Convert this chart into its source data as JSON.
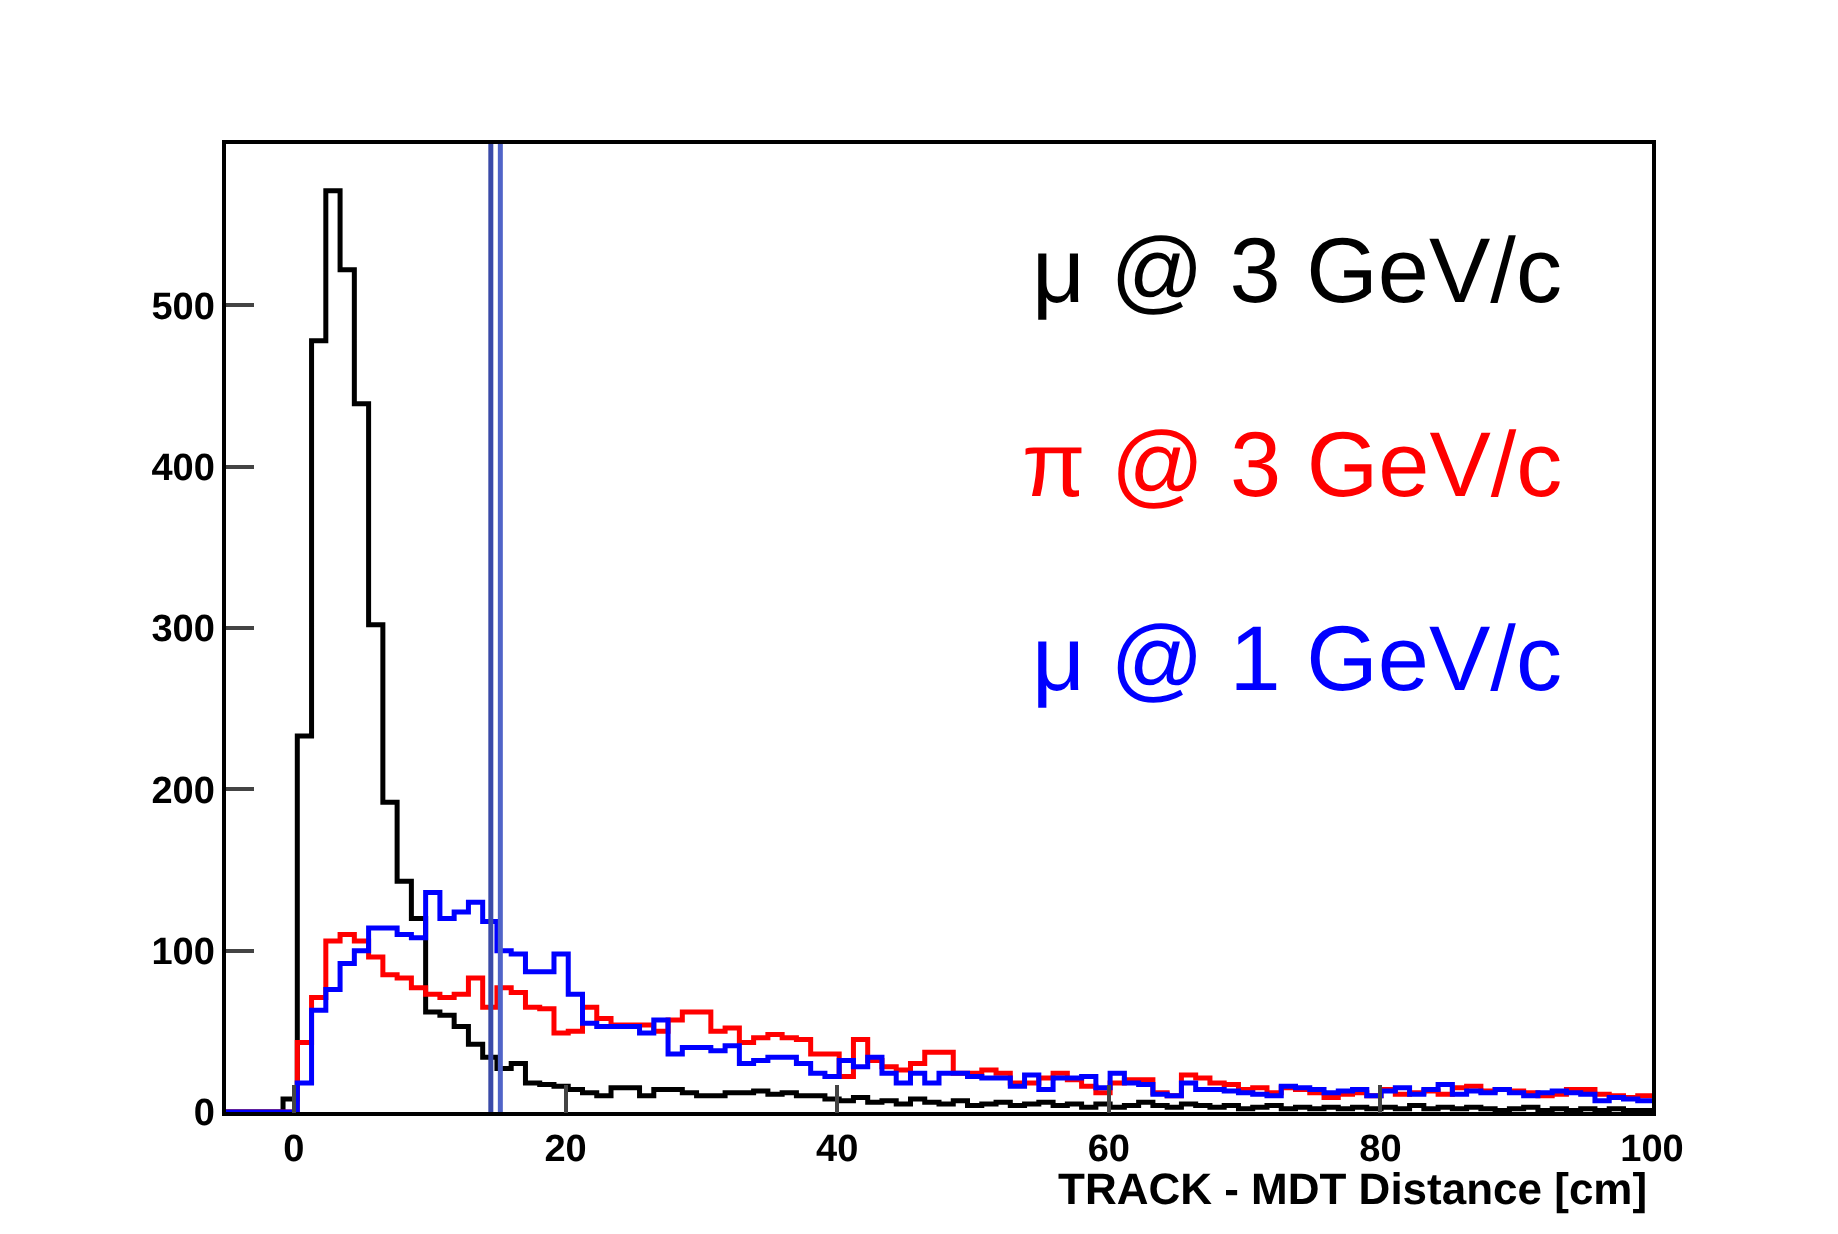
{
  "chart_data": {
    "type": "histogram",
    "xlabel": "TRACK - MDT Distance [cm]",
    "bins": [
      -5,
      -3.95,
      -2.9,
      -1.85,
      -0.8,
      0.25,
      1.3,
      2.35,
      3.4,
      4.45,
      5.5,
      6.55,
      7.6,
      8.65,
      9.7,
      10.75,
      11.8,
      12.85,
      13.9,
      14.95,
      16,
      17.05,
      18.1,
      19.15,
      20.2,
      21.25,
      22.3,
      23.35,
      24.4,
      25.45,
      26.5,
      27.55,
      28.6,
      29.65,
      30.7,
      31.75,
      32.8,
      33.85,
      34.9,
      35.95,
      37,
      38.05,
      39.1,
      40.15,
      41.2,
      42.25,
      43.3,
      44.35,
      45.4,
      46.45,
      47.5,
      48.55,
      49.6,
      50.65,
      51.7,
      52.75,
      53.8,
      54.85,
      55.9,
      56.95,
      58,
      59.05,
      60.1,
      61.15,
      62.2,
      63.25,
      64.3,
      65.35,
      66.4,
      67.45,
      68.5,
      69.55,
      70.6,
      71.65,
      72.7,
      73.75,
      74.8,
      75.85,
      76.9,
      77.95,
      79,
      80.05,
      81.1,
      82.15,
      83.2,
      84.25,
      85.3,
      86.35,
      87.4,
      88.45,
      89.5,
      90.55,
      91.6,
      92.65,
      93.7,
      94.75,
      95.8,
      96.85,
      97.9,
      98.95,
      100
    ],
    "series": [
      {
        "name": "μ @ 3 GeV/c",
        "color": "#000000",
        "values": [
          0,
          0,
          0,
          0,
          8,
          233,
          478,
          571,
          522,
          439,
          302,
          192,
          143,
          120,
          62,
          60,
          53,
          42,
          34,
          27,
          30,
          18,
          17,
          16,
          14,
          12,
          10,
          15,
          15,
          10,
          14,
          14,
          12,
          10,
          10,
          12,
          12,
          13,
          11,
          12,
          10,
          10,
          8,
          7,
          9,
          6,
          7,
          5,
          8,
          6,
          5,
          7,
          4,
          5,
          6,
          4,
          5,
          6,
          4,
          5,
          3,
          5,
          3,
          4,
          6,
          4,
          3,
          5,
          4,
          3,
          4,
          2,
          3,
          4,
          2,
          3,
          2,
          3,
          2,
          3,
          2,
          3,
          2,
          4,
          2,
          3,
          2,
          3,
          2,
          1,
          2,
          3,
          1,
          2,
          1,
          2,
          1,
          2,
          1,
          1
        ]
      },
      {
        "name": "π @ 3 GeV/c",
        "color": "#ff0000",
        "values": [
          0,
          0,
          0,
          0,
          0,
          43,
          71,
          106,
          110,
          106,
          96,
          85,
          83,
          77,
          73,
          71,
          73,
          83,
          65,
          77,
          74,
          65,
          64,
          49,
          50,
          65,
          58,
          54,
          54,
          54,
          50,
          57,
          62,
          62,
          50,
          52,
          43,
          46,
          48,
          46,
          45,
          36,
          36,
          22,
          45,
          32,
          28,
          26,
          30,
          37,
          37,
          24,
          24,
          26,
          24,
          18,
          18,
          21,
          24,
          20,
          16,
          12,
          18,
          20,
          20,
          12,
          10,
          23,
          21,
          18,
          17,
          14,
          15,
          12,
          15,
          14,
          12,
          9,
          11,
          12,
          10,
          14,
          11,
          12,
          13,
          11,
          15,
          16,
          13,
          14,
          13,
          12,
          10,
          11,
          14,
          14,
          11,
          10,
          9,
          10
        ]
      },
      {
        "name": "μ @ 1 GeV/c",
        "color": "#0000ff",
        "values": [
          0,
          0,
          0,
          0,
          0,
          18,
          63,
          76,
          92,
          100,
          114,
          114,
          110,
          108,
          136,
          120,
          124,
          130,
          118,
          100,
          98,
          87,
          87,
          98,
          73,
          55,
          53,
          53,
          53,
          49,
          57,
          36,
          40,
          40,
          38,
          41,
          30,
          32,
          34,
          34,
          30,
          24,
          22,
          32,
          28,
          34,
          24,
          18,
          24,
          18,
          24,
          24,
          22,
          21,
          21,
          16,
          23,
          14,
          21,
          21,
          22,
          15,
          24,
          18,
          17,
          11,
          10,
          18,
          14,
          14,
          13,
          12,
          11,
          10,
          16,
          15,
          14,
          12,
          13,
          14,
          10,
          13,
          15,
          11,
          14,
          17,
          11,
          13,
          12,
          14,
          12,
          10,
          12,
          13,
          12,
          11,
          7,
          9,
          8,
          7
        ]
      }
    ],
    "ref_lines": [
      {
        "axis": "x",
        "value": 14.5,
        "color": "#3a4aa8"
      },
      {
        "axis": "x",
        "value": 15.2,
        "color": "#5064c8"
      }
    ],
    "xlim": [
      -5,
      100
    ],
    "xticks": [
      0,
      20,
      40,
      60,
      80,
      100
    ],
    "ylim": [
      0,
      600
    ],
    "yticks": [
      0,
      100,
      200,
      300,
      400,
      500
    ],
    "grid": false,
    "legend": false
  }
}
